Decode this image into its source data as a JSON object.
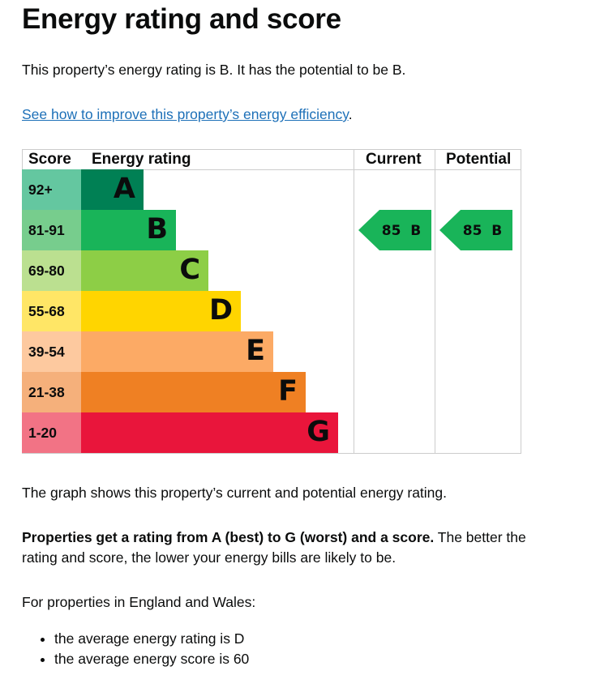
{
  "heading": "Energy rating and score",
  "intro": "This property’s energy rating is B. It has the potential to be B.",
  "link": {
    "text": "See how to improve this property’s energy efficiency",
    "suffix": "."
  },
  "chart_data": {
    "type": "bar",
    "headers": {
      "score": "Score",
      "rating": "Energy rating",
      "current": "Current",
      "potential": "Potential"
    },
    "bands": [
      {
        "score": "92+",
        "letter": "A",
        "bar_color": "#008054",
        "score_color": "#64c7a0",
        "letter_color": "#0b0c0c"
      },
      {
        "score": "81-91",
        "letter": "B",
        "bar_color": "#19b459",
        "score_color": "#77cd8d",
        "letter_color": "#0b0c0c"
      },
      {
        "score": "69-80",
        "letter": "C",
        "bar_color": "#8dce46",
        "score_color": "#bbe090",
        "letter_color": "#0b0c0c"
      },
      {
        "score": "55-68",
        "letter": "D",
        "bar_color": "#ffd500",
        "score_color": "#ffe666",
        "letter_color": "#0b0c0c"
      },
      {
        "score": "39-54",
        "letter": "E",
        "bar_color": "#fcaa65",
        "score_color": "#fdc99f",
        "letter_color": "#0b0c0c"
      },
      {
        "score": "21-38",
        "letter": "F",
        "bar_color": "#ef8023",
        "score_color": "#f5b07b",
        "letter_color": "#0b0c0c"
      },
      {
        "score": "1-20",
        "letter": "G",
        "bar_color": "#e9153b",
        "score_color": "#f27385",
        "letter_color": "#0b0c0c"
      }
    ],
    "current": {
      "score": 85,
      "band": "B",
      "label": "85  B",
      "color": "#19b459"
    },
    "potential": {
      "score": 85,
      "band": "B",
      "label": "85  B",
      "color": "#19b459"
    }
  },
  "graph_caption": "The graph shows this property’s current and potential energy rating.",
  "ratings_note": {
    "bold": "Properties get a rating from A (best) to G (worst) and a score.",
    "rest": " The better the rating and score, the lower your energy bills are likely to be."
  },
  "regional_intro": "For properties in England and Wales:",
  "averages": [
    "the average energy rating is D",
    "the average energy score is 60"
  ]
}
